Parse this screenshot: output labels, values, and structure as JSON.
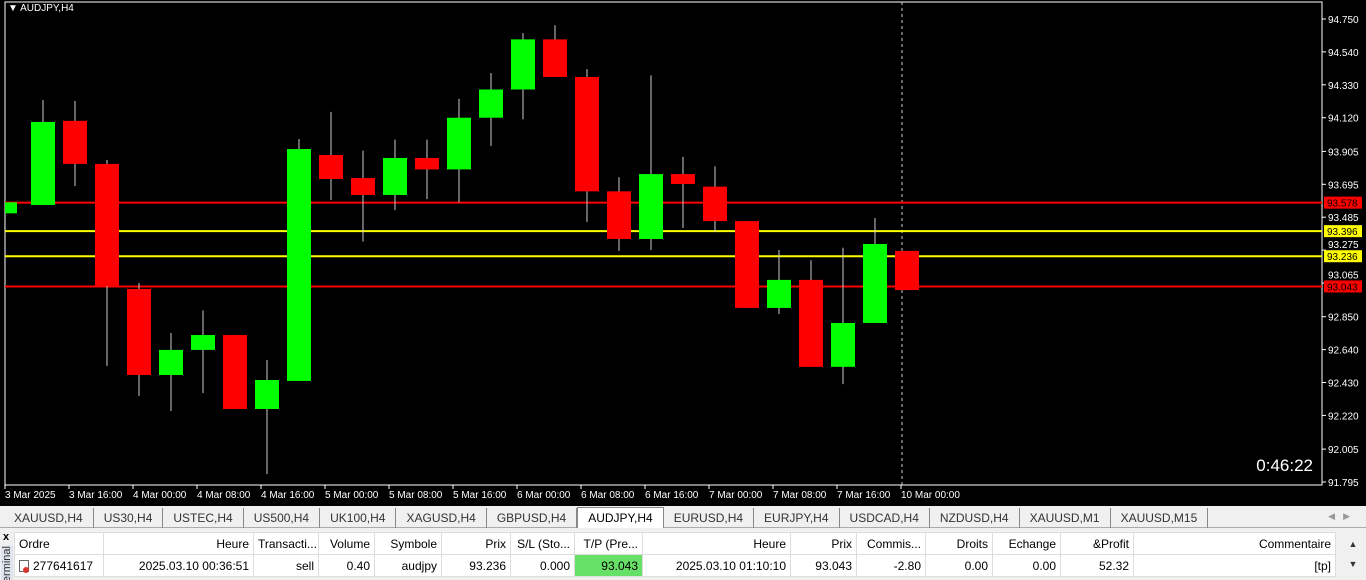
{
  "chart": {
    "title": "AUDJPY,H4",
    "timer": "0:46:22",
    "colors": {
      "bull": "#00ff00",
      "bear": "#ff0000",
      "background": "#000000",
      "foreground": "#ffffff"
    },
    "chart_data": {
      "type": "candlestick",
      "ylim": [
        91.795,
        94.75
      ],
      "y_ticks": [
        "94.750",
        "94.540",
        "94.330",
        "94.120",
        "93.905",
        "93.695",
        "93.485",
        "93.275",
        "93.065",
        "92.850",
        "92.640",
        "92.430",
        "92.220",
        "92.005",
        "91.795"
      ],
      "x_ticks": [
        "3 Mar 2025",
        "3 Mar 16:00",
        "4 Mar 00:00",
        "4 Mar 08:00",
        "4 Mar 16:00",
        "5 Mar 00:00",
        "5 Mar 08:00",
        "5 Mar 16:00",
        "6 Mar 00:00",
        "6 Mar 08:00",
        "6 Mar 16:00",
        "7 Mar 00:00",
        "7 Mar 08:00",
        "7 Mar 16:00",
        "10 Mar 00:00"
      ],
      "ohlc": [
        [
          93.51,
          93.58,
          93.51,
          93.58
        ],
        [
          93.563,
          94.233,
          93.563,
          94.093
        ],
        [
          94.1,
          94.227,
          93.684,
          93.825
        ],
        [
          93.825,
          93.85,
          92.536,
          93.046
        ],
        [
          93.027,
          93.065,
          92.344,
          92.478
        ],
        [
          92.478,
          92.746,
          92.248,
          92.638
        ],
        [
          92.638,
          92.89,
          92.363,
          92.733
        ],
        [
          92.733,
          92.733,
          92.261,
          92.261
        ],
        [
          92.261,
          92.574,
          91.846,
          92.446
        ],
        [
          92.44,
          93.984,
          92.44,
          93.92
        ],
        [
          93.882,
          94.157,
          93.595,
          93.729
        ],
        [
          93.735,
          93.91,
          93.33,
          93.627
        ],
        [
          93.627,
          93.98,
          93.53,
          93.863
        ],
        [
          93.863,
          93.98,
          93.6,
          93.79
        ],
        [
          93.79,
          94.24,
          93.58,
          94.12
        ],
        [
          94.12,
          94.405,
          93.94,
          94.3
        ],
        [
          94.3,
          94.66,
          94.11,
          94.62
        ],
        [
          94.62,
          94.71,
          94.38,
          94.38
        ],
        [
          94.38,
          94.43,
          93.455,
          93.65
        ],
        [
          93.65,
          93.74,
          93.27,
          93.346
        ],
        [
          93.346,
          94.39,
          93.275,
          93.76
        ],
        [
          93.76,
          93.87,
          93.416,
          93.697
        ],
        [
          93.68,
          93.81,
          93.39,
          93.46
        ],
        [
          93.46,
          93.46,
          92.906,
          92.906
        ],
        [
          92.906,
          93.276,
          92.867,
          93.085
        ],
        [
          93.085,
          93.21,
          92.53,
          92.53
        ],
        [
          92.53,
          93.29,
          92.42,
          92.81
        ],
        [
          92.81,
          93.48,
          92.81,
          93.314
        ],
        [
          93.27,
          93.27,
          93.02,
          93.02
        ]
      ],
      "levels": [
        {
          "value": "93.578",
          "color": "#ff0000"
        },
        {
          "value": "93.396",
          "color": "#ffff00"
        },
        {
          "value": "93.236",
          "color": "#ffff00"
        },
        {
          "value": "93.043",
          "color": "#ff0000"
        }
      ]
    }
  },
  "tabs": [
    "XAUUSD,H4",
    "US30,H4",
    "USTEC,H4",
    "US500,H4",
    "UK100,H4",
    "XAGUSD,H4",
    "GBPUSD,H4",
    "AUDJPY,H4",
    "EURUSD,H4",
    "EURJPY,H4",
    "USDCAD,H4",
    "NZDUSD,H4",
    "XAUUSD,M1",
    "XAUUSD,M15"
  ],
  "active_tab": "AUDJPY,H4",
  "terminal": {
    "close": "x",
    "label": "Terminal",
    "columns": [
      "Ordre",
      "Heure",
      "Transacti...",
      "Volume",
      "Symbole",
      "Prix",
      "S/L (Sto...",
      "T/P (Pre...",
      "Heure",
      "Prix",
      "Commis...",
      "Droits",
      "Echange",
      "&Profit",
      "Commentaire"
    ],
    "row": [
      "277641617",
      "2025.03.10 00:36:51",
      "sell",
      "0.40",
      "audjpy",
      "93.236",
      "0.000",
      "93.043",
      "2025.03.10 01:10:10",
      "93.043",
      "-2.80",
      "0.00",
      "0.00",
      "52.32",
      "[tp]"
    ]
  }
}
